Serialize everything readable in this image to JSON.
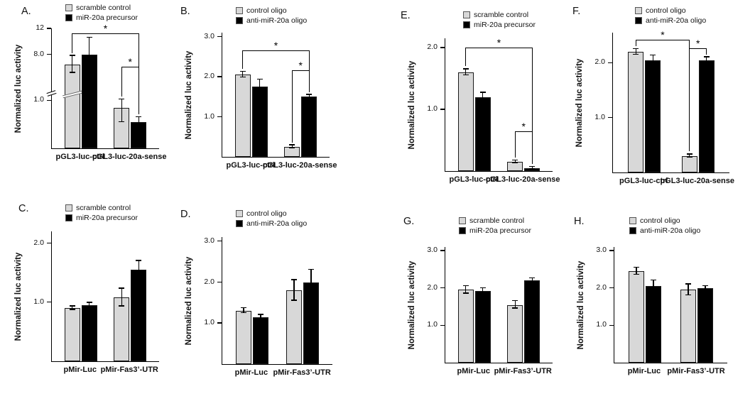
{
  "figure": {
    "description": "Luciferase reporter assay bar charts, panels A-H"
  },
  "colors": {
    "gray_series": "#d8d8d8",
    "black_series": "#000000",
    "axis": "#000000"
  },
  "chart_data": [
    {
      "panel": "A.",
      "type": "bar",
      "ylabel": "Normalized luc activity",
      "categories": [
        "pGL3-luc-ctrl",
        "pGL3-luc-20a-sense"
      ],
      "series": [
        {
          "name": "scramble control",
          "color": "#d8d8d8",
          "values": [
            6.5,
            0.85
          ],
          "errors": [
            1.3,
            0.3
          ]
        },
        {
          "name": "miR-20a precursor",
          "color": "#000000",
          "values": [
            8.0,
            0.55
          ],
          "errors": [
            2.6,
            0.1
          ]
        }
      ],
      "ylim": [
        0,
        12
      ],
      "yticks": [
        1.0,
        8.0,
        12
      ],
      "ytick_labels": [
        "1.0",
        "8.0",
        "12"
      ],
      "axis_break": {
        "below": 1.0,
        "frac": 0.4
      },
      "significance": [
        {
          "a": 0,
          "b": 3,
          "y": 0.96,
          "label": "*"
        },
        {
          "a": 2,
          "b": 3,
          "y": 0.68,
          "label": "*"
        }
      ]
    },
    {
      "panel": "B.",
      "type": "bar",
      "ylabel": "Normalized luc activity",
      "categories": [
        "pGL3-luc-ctrl",
        "pGL3-luc-20a-sense"
      ],
      "series": [
        {
          "name": "control oligo",
          "color": "#d8d8d8",
          "values": [
            2.05,
            0.25
          ],
          "errors": [
            0.07,
            0.04
          ]
        },
        {
          "name": "anti-miR-20a oligo",
          "color": "#000000",
          "values": [
            1.75,
            1.5
          ],
          "errors": [
            0.18,
            0.05
          ]
        }
      ],
      "ylim": [
        0,
        3.1
      ],
      "yticks": [
        1.0,
        2.0,
        3.0
      ],
      "ytick_labels": [
        "1.0",
        "2.0",
        "3.0"
      ],
      "significance": [
        {
          "a": 0,
          "b": 3,
          "y": 0.86,
          "label": "*"
        },
        {
          "a": 2,
          "b": 3,
          "y": 0.7,
          "label": "*"
        }
      ]
    },
    {
      "panel": "C.",
      "type": "bar",
      "ylabel": "Normalized luc activity",
      "categories": [
        "pMir-Luc",
        "pMir-Fas3’-UTR"
      ],
      "series": [
        {
          "name": "scramble control",
          "color": "#d8d8d8",
          "values": [
            0.9,
            1.08
          ],
          "errors": [
            0.03,
            0.15
          ]
        },
        {
          "name": "miR-20a precursor",
          "color": "#000000",
          "values": [
            0.95,
            1.55
          ],
          "errors": [
            0.04,
            0.15
          ]
        }
      ],
      "ylim": [
        0,
        2.2
      ],
      "yticks": [
        1.0,
        2.0
      ],
      "ytick_labels": [
        "1.0",
        "2.0"
      ],
      "significance": []
    },
    {
      "panel": "D.",
      "type": "bar",
      "ylabel": "Normalized luc activity",
      "categories": [
        "pMir-Luc",
        "pMir-Fas3’-UTR"
      ],
      "series": [
        {
          "name": "control oligo",
          "color": "#d8d8d8",
          "values": [
            1.3,
            1.8
          ],
          "errors": [
            0.06,
            0.25
          ]
        },
        {
          "name": "anti-miR-20a oligo",
          "color": "#000000",
          "values": [
            1.15,
            2.0
          ],
          "errors": [
            0.05,
            0.3
          ]
        }
      ],
      "ylim": [
        0,
        3.1
      ],
      "yticks": [
        1.0,
        2.0,
        3.0
      ],
      "ytick_labels": [
        "1.0",
        "2.0",
        "3.0"
      ],
      "significance": []
    },
    {
      "panel": "E.",
      "type": "bar",
      "ylabel": "Normalized luc activity",
      "categories": [
        "pGL3-luc-ctrl",
        "pGL3-luc-20a-sense"
      ],
      "series": [
        {
          "name": "scramble control",
          "color": "#d8d8d8",
          "values": [
            1.6,
            0.15
          ],
          "errors": [
            0.05,
            0.02
          ]
        },
        {
          "name": "miR-20a precursor",
          "color": "#000000",
          "values": [
            1.2,
            0.05
          ],
          "errors": [
            0.07,
            0.02
          ]
        }
      ],
      "ylim": [
        0,
        2.15
      ],
      "yticks": [
        1.0,
        2.0
      ],
      "ytick_labels": [
        "1.0",
        "2.0"
      ],
      "significance": [
        {
          "a": 0,
          "b": 3,
          "y": 0.93,
          "label": "*",
          "ends": [
            null,
            0.58
          ]
        },
        {
          "a": 2,
          "b": 3,
          "y": 0.3,
          "label": "*"
        }
      ]
    },
    {
      "panel": "F.",
      "type": "bar",
      "ylabel": "Normalized luc activity",
      "categories": [
        "pGL3-luc-ctrl",
        "pGL3-luc-20a-sense"
      ],
      "series": [
        {
          "name": "control oligo",
          "color": "#d8d8d8",
          "values": [
            2.2,
            0.3
          ],
          "errors": [
            0.05,
            0.03
          ]
        },
        {
          "name": "anti-miR-20a oligo",
          "color": "#000000",
          "values": [
            2.05,
            2.05
          ],
          "errors": [
            0.08,
            0.05
          ]
        }
      ],
      "ylim": [
        0,
        2.55
      ],
      "yticks": [
        1.0,
        2.0
      ],
      "ytick_labels": [
        "1.0",
        "2.0"
      ],
      "significance": [
        {
          "a": 0,
          "b": 2,
          "y": 0.95,
          "label": "*"
        },
        {
          "a": 2,
          "b": 3,
          "y": 0.89,
          "label": "*"
        }
      ]
    },
    {
      "panel": "G.",
      "type": "bar",
      "ylabel": "Normalized luc activity",
      "categories": [
        "pMir-Luc",
        "pMir-Fas3’-UTR"
      ],
      "series": [
        {
          "name": "scramble control",
          "color": "#d8d8d8",
          "values": [
            1.95,
            1.55
          ],
          "errors": [
            0.1,
            0.1
          ]
        },
        {
          "name": "miR-20a precursor",
          "color": "#000000",
          "values": [
            1.93,
            2.2
          ],
          "errors": [
            0.07,
            0.06
          ]
        }
      ],
      "ylim": [
        0,
        3.1
      ],
      "yticks": [
        1.0,
        2.0,
        3.0
      ],
      "ytick_labels": [
        "1.0",
        "2.0",
        "3.0"
      ],
      "significance": []
    },
    {
      "panel": "H.",
      "type": "bar",
      "ylabel": "Normalized luc activity",
      "categories": [
        "pMir-Luc",
        "pMir-Fas3’-UTR"
      ],
      "series": [
        {
          "name": "control oligo",
          "color": "#d8d8d8",
          "values": [
            2.45,
            1.95
          ],
          "errors": [
            0.1,
            0.15
          ]
        },
        {
          "name": "anti-miR-20a oligo",
          "color": "#000000",
          "values": [
            2.05,
            2.0
          ],
          "errors": [
            0.15,
            0.05
          ]
        }
      ],
      "ylim": [
        0,
        3.1
      ],
      "yticks": [
        1.0,
        2.0,
        3.0
      ],
      "ytick_labels": [
        "1.0",
        "2.0",
        "3.0"
      ],
      "significance": []
    }
  ]
}
